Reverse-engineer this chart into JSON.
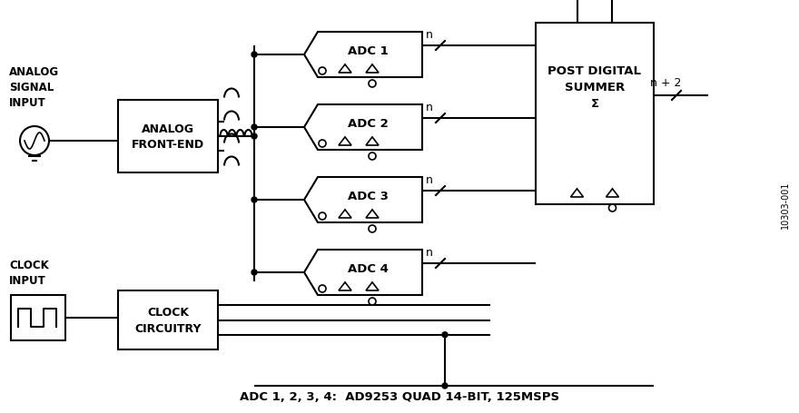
{
  "title": "",
  "bg_color": "#ffffff",
  "line_color": "#000000",
  "fig_width": 8.8,
  "fig_height": 4.56,
  "dpi": 100,
  "watermark": "10303-001",
  "bottom_label": "ADC 1, 2, 3, 4:  AD9253 QUAD 14-BIT, 125MSPS",
  "analog_signal_label": [
    "ANALOG",
    "SIGNAL",
    "INPUT"
  ],
  "clock_label": [
    "CLOCK",
    "INPUT"
  ],
  "analog_fe_label": [
    "ANALOG",
    "FRONT-END"
  ],
  "clock_circ_label": [
    "CLOCK",
    "CIRCUITRY"
  ],
  "post_digital_label": [
    "POST DIGITAL",
    "SUMMER",
    "Σ"
  ],
  "adc_labels": [
    "ADC 1",
    "ADC 2",
    "ADC 3",
    "ADC 4"
  ],
  "n_label": "n",
  "n2_label": "n + 2"
}
